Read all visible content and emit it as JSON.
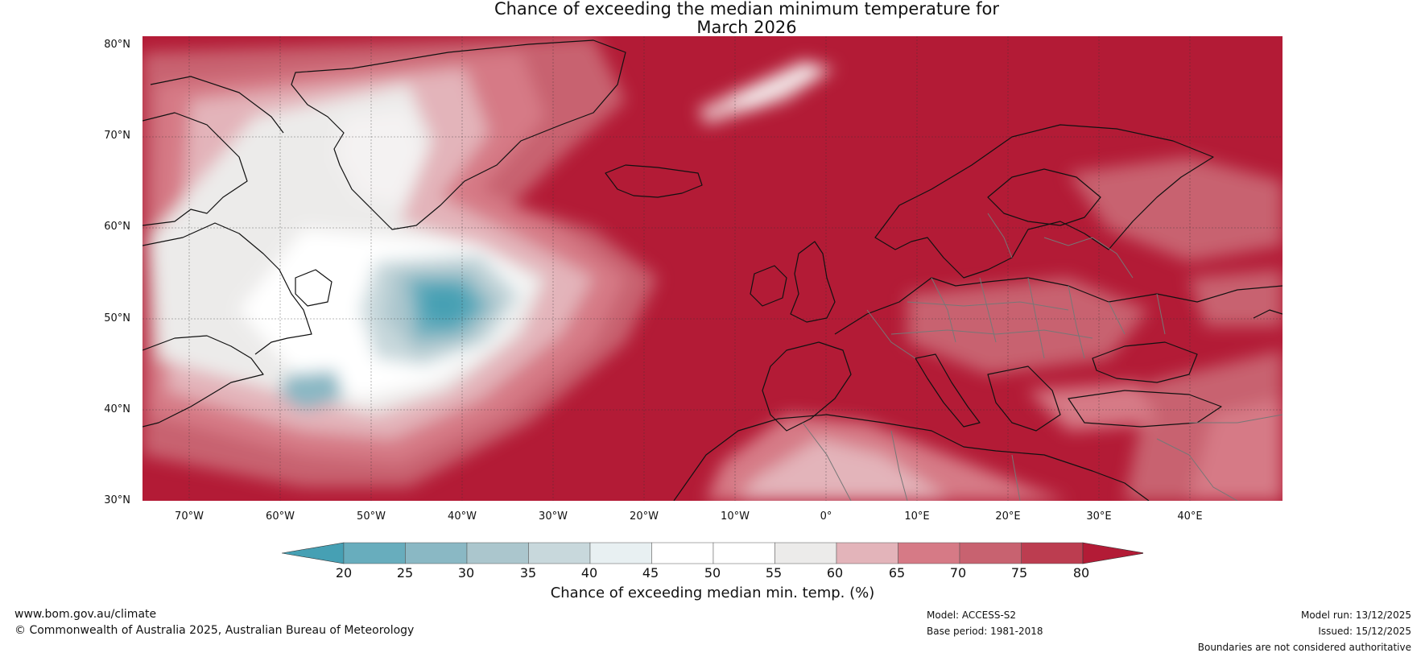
{
  "title_line1": "Chance of exceeding the median minimum temperature for",
  "title_line2": "March 2026",
  "lat_labels": [
    "80°N",
    "70°N",
    "60°N",
    "50°N",
    "40°N",
    "30°N"
  ],
  "lon_labels": [
    "70°W",
    "60°W",
    "50°W",
    "40°W",
    "30°W",
    "20°W",
    "10°W",
    "0°",
    "10°E",
    "20°E",
    "30°E",
    "40°E"
  ],
  "colorbar": {
    "ticks": [
      "20",
      "25",
      "30",
      "35",
      "40",
      "45",
      "50",
      "55",
      "60",
      "65",
      "70",
      "75",
      "80"
    ],
    "colors": [
      "#46a0b4",
      "#68adbd",
      "#8ab8c4",
      "#abc6cd",
      "#c8d8dc",
      "#e8f0f2",
      "#ffffff",
      "#ffffff",
      "#ecebea",
      "#e3b4ba",
      "#d67a86",
      "#c86270",
      "#bc3d50",
      "#b31b36"
    ],
    "label": "Chance of exceeding median min. temp. (%)"
  },
  "colors": {
    "high": "#b31b36",
    "mid_high": "#c86270",
    "light_pink": "#e3b4ba",
    "near_white": "#f4f2f2",
    "teal": "#46a0b4",
    "light_teal": "#abc6cd"
  },
  "footer": {
    "website": "www.bom.gov.au/climate",
    "copyright": "© Commonwealth of Australia 2025, Australian Bureau of Meteorology",
    "model": "Model: ACCESS-S2",
    "base_period": "Base period: 1981-2018",
    "model_run": "Model run: 13/12/2025",
    "issued": "Issued: 15/12/2025",
    "disclaimer": "Boundaries are not considered authoritative"
  }
}
